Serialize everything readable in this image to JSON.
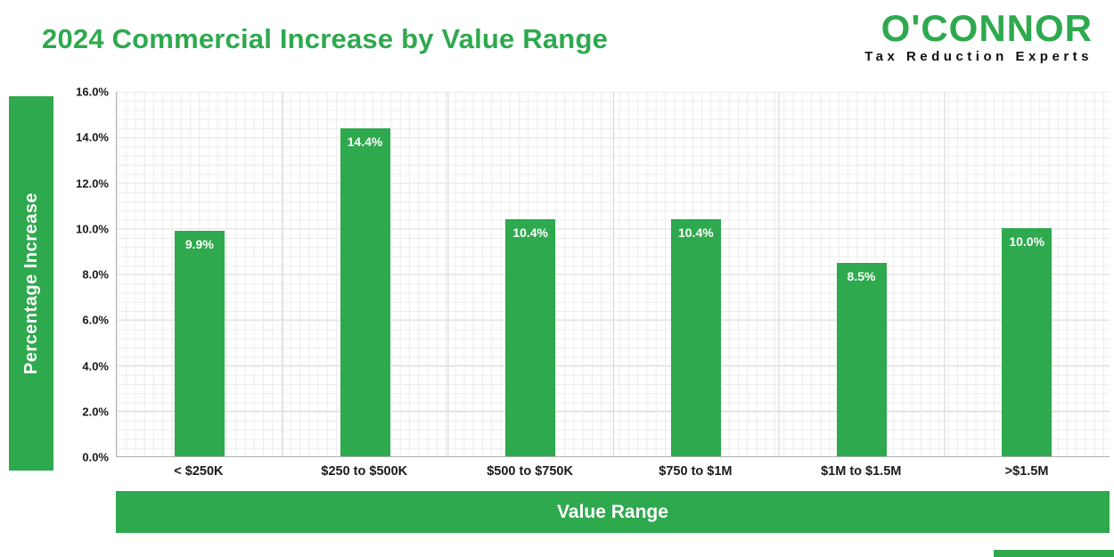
{
  "header": {
    "title": "2024 Commercial Increase by Value Range",
    "logo": {
      "name": "O'CONNOR",
      "tagline": "Tax Reduction Experts"
    }
  },
  "colors": {
    "brand_green": "#2EA94E",
    "label_text": "#1a1a1a",
    "bar_label_text": "#ffffff"
  },
  "chart_data": {
    "type": "bar",
    "title": "2024 Commercial Increase by Value Range",
    "categories": [
      "< $250K",
      "$250 to $500K",
      "$500 to $750K",
      "$750 to $1M",
      "$1M to $1.5M",
      ">$1.5M"
    ],
    "values": [
      9.9,
      14.4,
      10.4,
      10.4,
      8.5,
      10.0
    ],
    "value_labels": [
      "9.9%",
      "14.4%",
      "10.4%",
      "10.4%",
      "8.5%",
      "10.0%"
    ],
    "xlabel": "Value Range",
    "ylabel": "Percentage Increase",
    "ylim": [
      0,
      16
    ],
    "ytick_step": 2,
    "ytick_labels": [
      "16.0%",
      "14.0%",
      "12.0%",
      "10.0%",
      "8.0%",
      "6.0%",
      "4.0%",
      "2.0%",
      "0.0%"
    ],
    "grid": true,
    "legend": "none",
    "bar_color": "#2EA94E"
  }
}
